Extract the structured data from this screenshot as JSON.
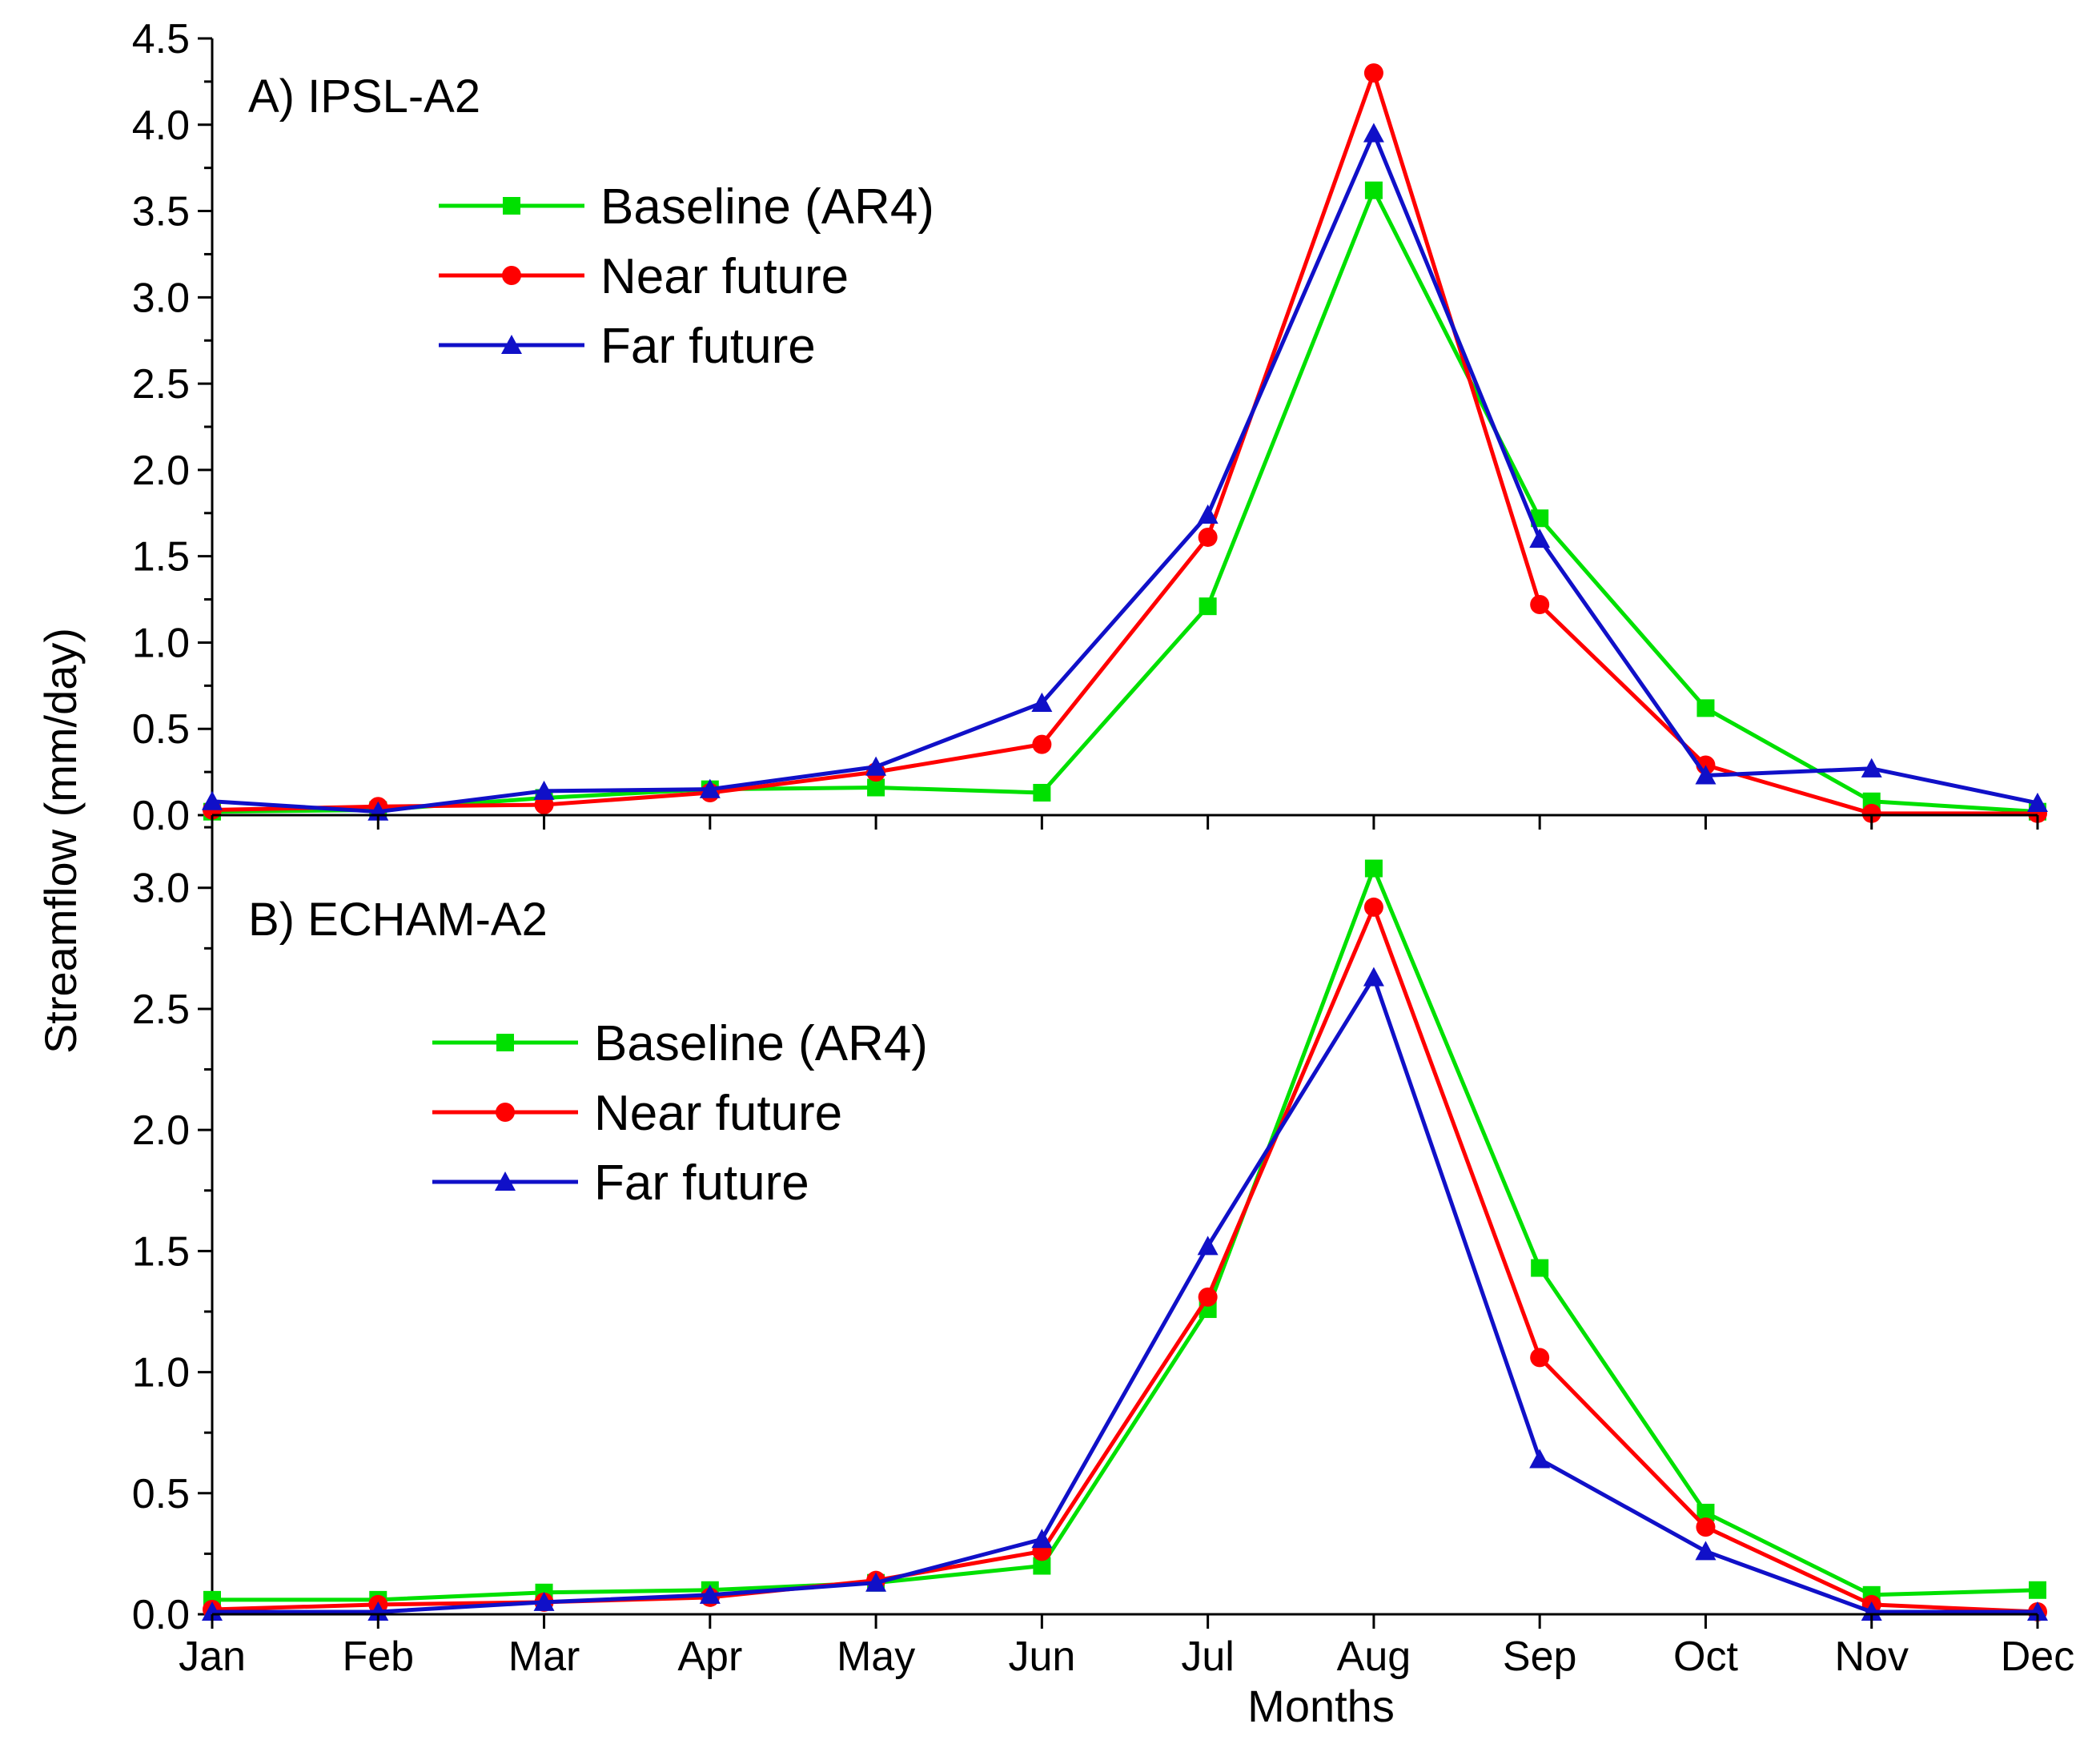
{
  "chart_data": {
    "type": "line",
    "ylabel": "Streamflow (mm/day)",
    "xlabel": "Months",
    "categories": [
      "Jan",
      "Feb",
      "Mar",
      "Apr",
      "May",
      "Jun",
      "Jul",
      "Aug",
      "Sep",
      "Oct",
      "Nov",
      "Dec"
    ],
    "series_colors": {
      "Baseline (AR4)": "#00e000",
      "Near future": "#ff0000",
      "Far future": "#1010c8"
    },
    "panels": [
      {
        "title": "A)  IPSL-A2",
        "ylim": [
          0,
          4.5
        ],
        "yticks": [
          "0.0",
          "0.5",
          "1.0",
          "1.5",
          "2.0",
          "2.5",
          "3.0",
          "3.5",
          "4.0",
          "4.5"
        ],
        "series": [
          {
            "name": "Baseline (AR4)",
            "marker": "square",
            "values": [
              0.02,
              0.03,
              0.1,
              0.15,
              0.16,
              0.13,
              1.21,
              3.62,
              1.72,
              0.62,
              0.08,
              0.02
            ]
          },
          {
            "name": "Near future",
            "marker": "circle",
            "values": [
              0.03,
              0.05,
              0.06,
              0.13,
              0.25,
              0.41,
              1.61,
              4.3,
              1.22,
              0.29,
              0.01,
              0.01
            ]
          },
          {
            "name": "Far future",
            "marker": "triangle",
            "values": [
              0.08,
              0.02,
              0.14,
              0.15,
              0.28,
              0.65,
              1.74,
              3.95,
              1.6,
              0.23,
              0.27,
              0.07
            ]
          }
        ]
      },
      {
        "title": "B)  ECHAM-A2",
        "ylim": [
          0,
          3.3
        ],
        "yticks": [
          "0.0",
          "0.5",
          "1.0",
          "1.5",
          "2.0",
          "2.5",
          "3.0"
        ],
        "series": [
          {
            "name": "Baseline (AR4)",
            "marker": "square",
            "values": [
              0.06,
              0.06,
              0.09,
              0.1,
              0.13,
              0.2,
              1.26,
              3.08,
              1.43,
              0.42,
              0.08,
              0.1
            ]
          },
          {
            "name": "Near future",
            "marker": "circle",
            "values": [
              0.02,
              0.04,
              0.05,
              0.07,
              0.14,
              0.26,
              1.31,
              2.92,
              1.06,
              0.36,
              0.04,
              0.01
            ]
          },
          {
            "name": "Far future",
            "marker": "triangle",
            "values": [
              0.01,
              0.01,
              0.05,
              0.08,
              0.13,
              0.31,
              1.52,
              2.63,
              0.64,
              0.26,
              0.01,
              0.01
            ]
          }
        ]
      }
    ]
  }
}
